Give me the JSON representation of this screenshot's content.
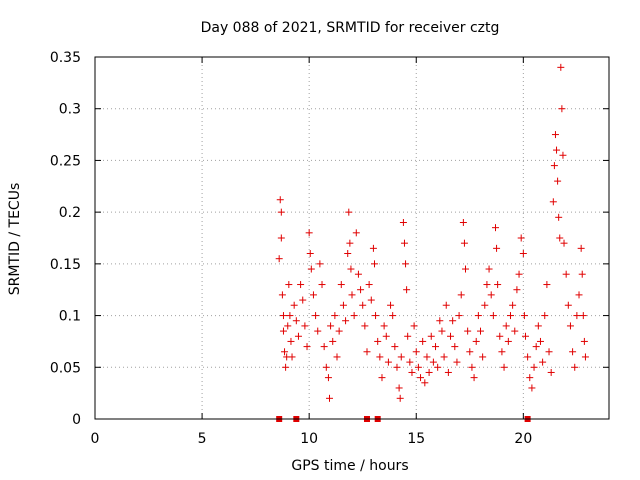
{
  "chart_data": {
    "type": "scatter",
    "title": "Day 088 of 2021, SRMTID for receiver cztg",
    "xlabel": "GPS time / hours",
    "ylabel": "SRMTID / TECUs",
    "xlim": [
      0,
      24
    ],
    "ylim": [
      0,
      0.35
    ],
    "xticks": [
      0,
      5,
      10,
      15,
      20
    ],
    "xtick_labels": [
      "0",
      "5",
      "10",
      "15",
      "20"
    ],
    "yticks": [
      0,
      0.05,
      0.1,
      0.15,
      0.2,
      0.25,
      0.3,
      0.35
    ],
    "ytick_labels": [
      "0",
      "0.05",
      "0.1",
      "0.15",
      "0.2",
      "0.25",
      "0.3",
      "0.35"
    ],
    "grid": true,
    "marker": "+",
    "color": "#e00000",
    "zero_markers_x": [
      8.6,
      9.4,
      12.7,
      13.2,
      20.2
    ],
    "series": [
      {
        "name": "SRMTID",
        "points": [
          [
            8.6,
            0.155
          ],
          [
            8.65,
            0.212
          ],
          [
            8.7,
            0.2
          ],
          [
            8.7,
            0.175
          ],
          [
            8.75,
            0.12
          ],
          [
            8.8,
            0.1
          ],
          [
            8.8,
            0.085
          ],
          [
            8.85,
            0.065
          ],
          [
            8.9,
            0.05
          ],
          [
            8.95,
            0.06
          ],
          [
            9.0,
            0.09
          ],
          [
            9.05,
            0.13
          ],
          [
            9.1,
            0.1
          ],
          [
            9.15,
            0.075
          ],
          [
            9.2,
            0.06
          ],
          [
            9.3,
            0.11
          ],
          [
            9.4,
            0.095
          ],
          [
            9.5,
            0.08
          ],
          [
            9.6,
            0.13
          ],
          [
            9.7,
            0.115
          ],
          [
            9.8,
            0.09
          ],
          [
            9.9,
            0.07
          ],
          [
            10.0,
            0.18
          ],
          [
            10.05,
            0.16
          ],
          [
            10.1,
            0.145
          ],
          [
            10.2,
            0.12
          ],
          [
            10.3,
            0.1
          ],
          [
            10.4,
            0.085
          ],
          [
            10.5,
            0.15
          ],
          [
            10.6,
            0.13
          ],
          [
            10.7,
            0.07
          ],
          [
            10.8,
            0.05
          ],
          [
            10.9,
            0.04
          ],
          [
            10.95,
            0.02
          ],
          [
            11.0,
            0.09
          ],
          [
            11.1,
            0.075
          ],
          [
            11.2,
            0.1
          ],
          [
            11.3,
            0.06
          ],
          [
            11.4,
            0.085
          ],
          [
            11.5,
            0.13
          ],
          [
            11.6,
            0.11
          ],
          [
            11.7,
            0.095
          ],
          [
            11.8,
            0.16
          ],
          [
            11.85,
            0.2
          ],
          [
            11.9,
            0.17
          ],
          [
            11.95,
            0.145
          ],
          [
            12.0,
            0.12
          ],
          [
            12.1,
            0.1
          ],
          [
            12.2,
            0.18
          ],
          [
            12.3,
            0.14
          ],
          [
            12.4,
            0.125
          ],
          [
            12.5,
            0.11
          ],
          [
            12.6,
            0.09
          ],
          [
            12.7,
            0.065
          ],
          [
            12.8,
            0.13
          ],
          [
            12.9,
            0.115
          ],
          [
            13.0,
            0.165
          ],
          [
            13.05,
            0.15
          ],
          [
            13.1,
            0.1
          ],
          [
            13.2,
            0.075
          ],
          [
            13.3,
            0.06
          ],
          [
            13.4,
            0.04
          ],
          [
            13.5,
            0.09
          ],
          [
            13.6,
            0.08
          ],
          [
            13.7,
            0.055
          ],
          [
            13.8,
            0.11
          ],
          [
            13.9,
            0.1
          ],
          [
            14.0,
            0.07
          ],
          [
            14.1,
            0.05
          ],
          [
            14.2,
            0.03
          ],
          [
            14.25,
            0.02
          ],
          [
            14.3,
            0.06
          ],
          [
            14.4,
            0.19
          ],
          [
            14.45,
            0.17
          ],
          [
            14.5,
            0.15
          ],
          [
            14.55,
            0.125
          ],
          [
            14.6,
            0.08
          ],
          [
            14.7,
            0.055
          ],
          [
            14.8,
            0.045
          ],
          [
            14.9,
            0.09
          ],
          [
            15.0,
            0.065
          ],
          [
            15.1,
            0.05
          ],
          [
            15.2,
            0.04
          ],
          [
            15.3,
            0.075
          ],
          [
            15.4,
            0.035
          ],
          [
            15.5,
            0.06
          ],
          [
            15.6,
            0.045
          ],
          [
            15.7,
            0.08
          ],
          [
            15.8,
            0.055
          ],
          [
            15.9,
            0.07
          ],
          [
            16.0,
            0.05
          ],
          [
            16.1,
            0.095
          ],
          [
            16.2,
            0.085
          ],
          [
            16.3,
            0.06
          ],
          [
            16.4,
            0.11
          ],
          [
            16.5,
            0.045
          ],
          [
            16.6,
            0.08
          ],
          [
            16.7,
            0.095
          ],
          [
            16.8,
            0.07
          ],
          [
            16.9,
            0.055
          ],
          [
            17.0,
            0.1
          ],
          [
            17.1,
            0.12
          ],
          [
            17.2,
            0.19
          ],
          [
            17.25,
            0.17
          ],
          [
            17.3,
            0.145
          ],
          [
            17.4,
            0.085
          ],
          [
            17.5,
            0.065
          ],
          [
            17.6,
            0.05
          ],
          [
            17.7,
            0.04
          ],
          [
            17.8,
            0.075
          ],
          [
            17.9,
            0.1
          ],
          [
            18.0,
            0.085
          ],
          [
            18.1,
            0.06
          ],
          [
            18.2,
            0.11
          ],
          [
            18.3,
            0.13
          ],
          [
            18.4,
            0.145
          ],
          [
            18.5,
            0.12
          ],
          [
            18.6,
            0.1
          ],
          [
            18.7,
            0.185
          ],
          [
            18.75,
            0.165
          ],
          [
            18.8,
            0.13
          ],
          [
            18.9,
            0.08
          ],
          [
            19.0,
            0.065
          ],
          [
            19.1,
            0.05
          ],
          [
            19.2,
            0.09
          ],
          [
            19.3,
            0.075
          ],
          [
            19.4,
            0.1
          ],
          [
            19.5,
            0.11
          ],
          [
            19.6,
            0.085
          ],
          [
            19.7,
            0.125
          ],
          [
            19.8,
            0.14
          ],
          [
            19.9,
            0.175
          ],
          [
            20.0,
            0.16
          ],
          [
            20.05,
            0.1
          ],
          [
            20.1,
            0.08
          ],
          [
            20.2,
            0.06
          ],
          [
            20.3,
            0.04
          ],
          [
            20.4,
            0.03
          ],
          [
            20.5,
            0.05
          ],
          [
            20.6,
            0.07
          ],
          [
            20.7,
            0.09
          ],
          [
            20.8,
            0.075
          ],
          [
            20.9,
            0.055
          ],
          [
            21.0,
            0.1
          ],
          [
            21.1,
            0.13
          ],
          [
            21.2,
            0.065
          ],
          [
            21.3,
            0.045
          ],
          [
            21.4,
            0.21
          ],
          [
            21.45,
            0.245
          ],
          [
            21.5,
            0.275
          ],
          [
            21.55,
            0.26
          ],
          [
            21.6,
            0.23
          ],
          [
            21.65,
            0.195
          ],
          [
            21.7,
            0.175
          ],
          [
            21.75,
            0.34
          ],
          [
            21.8,
            0.3
          ],
          [
            21.85,
            0.255
          ],
          [
            21.9,
            0.17
          ],
          [
            22.0,
            0.14
          ],
          [
            22.1,
            0.11
          ],
          [
            22.2,
            0.09
          ],
          [
            22.3,
            0.065
          ],
          [
            22.4,
            0.05
          ],
          [
            22.5,
            0.1
          ],
          [
            22.6,
            0.12
          ],
          [
            22.7,
            0.165
          ],
          [
            22.75,
            0.14
          ],
          [
            22.8,
            0.1
          ],
          [
            22.85,
            0.075
          ],
          [
            22.9,
            0.06
          ]
        ]
      }
    ]
  }
}
